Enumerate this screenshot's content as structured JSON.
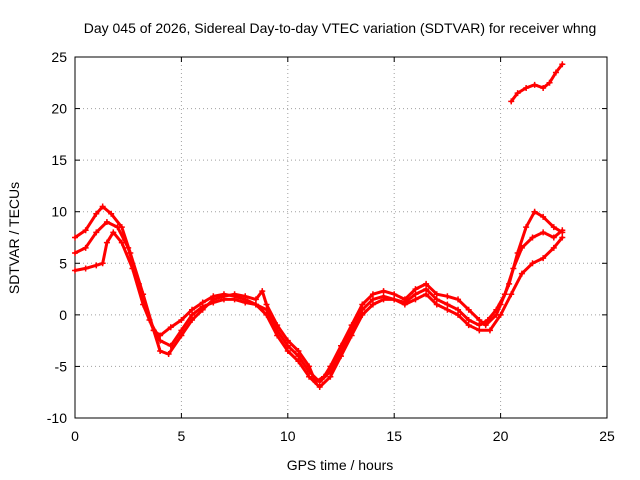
{
  "chart_data": {
    "type": "line",
    "title": "Day 045 of 2026, Sidereal Day-to-day VTEC variation (SDTVAR) for receiver whng",
    "xlabel": "GPS time / hours",
    "ylabel": "SDTVAR / TECUs",
    "xlim": [
      0,
      25
    ],
    "ylim": [
      -10,
      25
    ],
    "x_ticks": [
      0,
      5,
      10,
      15,
      20,
      25
    ],
    "x_tick_labels": [
      "0",
      "5",
      "10",
      "15",
      "20",
      "25"
    ],
    "y_ticks": [
      -10,
      -5,
      0,
      5,
      10,
      15,
      20,
      25
    ],
    "y_tick_labels": [
      "-10",
      "-5",
      "0",
      "5",
      "10",
      "15",
      "20",
      "25"
    ],
    "grid": true,
    "series_color": "#ff0000",
    "series": [
      {
        "name": "trace-1",
        "points": [
          [
            0,
            7.5
          ],
          [
            0.5,
            8.2
          ],
          [
            1.0,
            9.8
          ],
          [
            1.3,
            10.5
          ],
          [
            1.7,
            9.8
          ],
          [
            2.2,
            8.5
          ],
          [
            2.6,
            6.0
          ],
          [
            3.2,
            2.0
          ],
          [
            3.7,
            -1.5
          ],
          [
            4.0,
            -3.5
          ],
          [
            4.4,
            -3.8
          ],
          [
            5.0,
            -2.0
          ],
          [
            5.5,
            -0.5
          ],
          [
            6.0,
            0.5
          ],
          [
            6.5,
            1.5
          ],
          [
            7.0,
            1.8
          ],
          [
            7.5,
            2.0
          ],
          [
            8.0,
            1.8
          ],
          [
            8.5,
            1.5
          ],
          [
            8.8,
            2.3
          ],
          [
            9.0,
            1.0
          ],
          [
            9.5,
            -1.0
          ],
          [
            10.0,
            -2.5
          ],
          [
            10.5,
            -3.5
          ],
          [
            11.0,
            -5.0
          ],
          [
            11.3,
            -6.5
          ],
          [
            11.7,
            -6.0
          ],
          [
            12.0,
            -5.0
          ],
          [
            12.5,
            -3.0
          ],
          [
            13.0,
            -1.0
          ],
          [
            13.5,
            1.0
          ],
          [
            14.0,
            2.0
          ],
          [
            14.5,
            2.3
          ],
          [
            15.0,
            2.0
          ],
          [
            15.5,
            1.5
          ],
          [
            16.0,
            2.5
          ],
          [
            16.5,
            3.0
          ],
          [
            17.0,
            2.0
          ],
          [
            17.5,
            1.8
          ],
          [
            18.0,
            1.5
          ],
          [
            18.5,
            0.5
          ],
          [
            19.0,
            -0.5
          ],
          [
            19.3,
            -1.0
          ],
          [
            19.8,
            0.0
          ],
          [
            20.0,
            1.0
          ],
          [
            20.4,
            3.0
          ],
          [
            20.8,
            6.0
          ],
          [
            21.2,
            8.5
          ],
          [
            21.6,
            10.0
          ],
          [
            22.0,
            9.5
          ],
          [
            22.5,
            8.5
          ],
          [
            22.9,
            8.0
          ]
        ]
      },
      {
        "name": "trace-2",
        "points": [
          [
            0,
            6.0
          ],
          [
            0.5,
            6.5
          ],
          [
            1.0,
            8.0
          ],
          [
            1.5,
            9.0
          ],
          [
            2.0,
            8.5
          ],
          [
            2.5,
            6.5
          ],
          [
            3.0,
            3.0
          ],
          [
            3.5,
            -0.5
          ],
          [
            4.0,
            -2.5
          ],
          [
            4.5,
            -3.0
          ],
          [
            5.0,
            -1.5
          ],
          [
            5.5,
            0.0
          ],
          [
            6.0,
            0.8
          ],
          [
            6.5,
            1.2
          ],
          [
            7.0,
            1.5
          ],
          [
            7.5,
            1.5
          ],
          [
            8.0,
            1.2
          ],
          [
            8.5,
            1.0
          ],
          [
            9.0,
            0.5
          ],
          [
            9.5,
            -1.5
          ],
          [
            10.0,
            -3.0
          ],
          [
            10.5,
            -4.0
          ],
          [
            11.0,
            -5.5
          ],
          [
            11.5,
            -6.5
          ],
          [
            12.0,
            -5.5
          ],
          [
            12.5,
            -3.5
          ],
          [
            13.0,
            -1.5
          ],
          [
            13.5,
            0.5
          ],
          [
            14.0,
            1.5
          ],
          [
            14.5,
            1.8
          ],
          [
            15.0,
            1.5
          ],
          [
            15.5,
            1.2
          ],
          [
            16.0,
            2.0
          ],
          [
            16.5,
            2.5
          ],
          [
            17.0,
            1.5
          ],
          [
            17.5,
            1.0
          ],
          [
            18.0,
            0.5
          ],
          [
            18.5,
            -0.5
          ],
          [
            19.0,
            -1.0
          ],
          [
            19.4,
            -0.5
          ],
          [
            19.8,
            0.5
          ],
          [
            20.2,
            2.0
          ],
          [
            20.6,
            4.5
          ],
          [
            21.0,
            6.5
          ],
          [
            21.5,
            7.5
          ],
          [
            22.0,
            8.0
          ],
          [
            22.5,
            7.5
          ],
          [
            22.9,
            8.2
          ]
        ]
      },
      {
        "name": "trace-3",
        "points": [
          [
            0,
            4.3
          ],
          [
            0.5,
            4.5
          ],
          [
            1.0,
            4.8
          ],
          [
            1.3,
            5.0
          ],
          [
            1.5,
            7.0
          ],
          [
            1.8,
            8.0
          ],
          [
            2.2,
            7.0
          ],
          [
            2.7,
            4.5
          ],
          [
            3.2,
            1.0
          ],
          [
            3.7,
            -1.5
          ],
          [
            4.0,
            -2.0
          ],
          [
            4.5,
            -1.2
          ],
          [
            5.0,
            -0.5
          ],
          [
            5.5,
            0.5
          ],
          [
            6.0,
            1.2
          ],
          [
            6.5,
            1.8
          ],
          [
            7.0,
            2.0
          ],
          [
            7.5,
            1.8
          ],
          [
            8.0,
            1.5
          ],
          [
            8.5,
            1.0
          ],
          [
            9.0,
            0.0
          ],
          [
            9.5,
            -2.0
          ],
          [
            10.0,
            -3.5
          ],
          [
            10.5,
            -4.5
          ],
          [
            11.0,
            -6.0
          ],
          [
            11.5,
            -7.0
          ],
          [
            12.0,
            -6.0
          ],
          [
            12.5,
            -4.0
          ],
          [
            13.0,
            -2.0
          ],
          [
            13.5,
            0.0
          ],
          [
            14.0,
            1.0
          ],
          [
            14.5,
            1.5
          ],
          [
            15.0,
            1.5
          ],
          [
            15.5,
            1.0
          ],
          [
            16.0,
            1.5
          ],
          [
            16.5,
            2.0
          ],
          [
            17.0,
            1.0
          ],
          [
            17.5,
            0.5
          ],
          [
            18.0,
            0.0
          ],
          [
            18.5,
            -1.0
          ],
          [
            19.0,
            -1.5
          ],
          [
            19.5,
            -1.5
          ],
          [
            20.0,
            0.0
          ],
          [
            20.5,
            2.0
          ],
          [
            21.0,
            4.0
          ],
          [
            21.5,
            5.0
          ],
          [
            22.0,
            5.5
          ],
          [
            22.5,
            6.5
          ],
          [
            22.9,
            7.5
          ]
        ]
      },
      {
        "name": "trace-4",
        "points": [
          [
            20.5,
            20.7
          ],
          [
            20.8,
            21.5
          ],
          [
            21.2,
            22.0
          ],
          [
            21.6,
            22.3
          ],
          [
            22.0,
            22.0
          ],
          [
            22.3,
            22.5
          ],
          [
            22.6,
            23.5
          ],
          [
            22.9,
            24.3
          ]
        ]
      }
    ]
  }
}
